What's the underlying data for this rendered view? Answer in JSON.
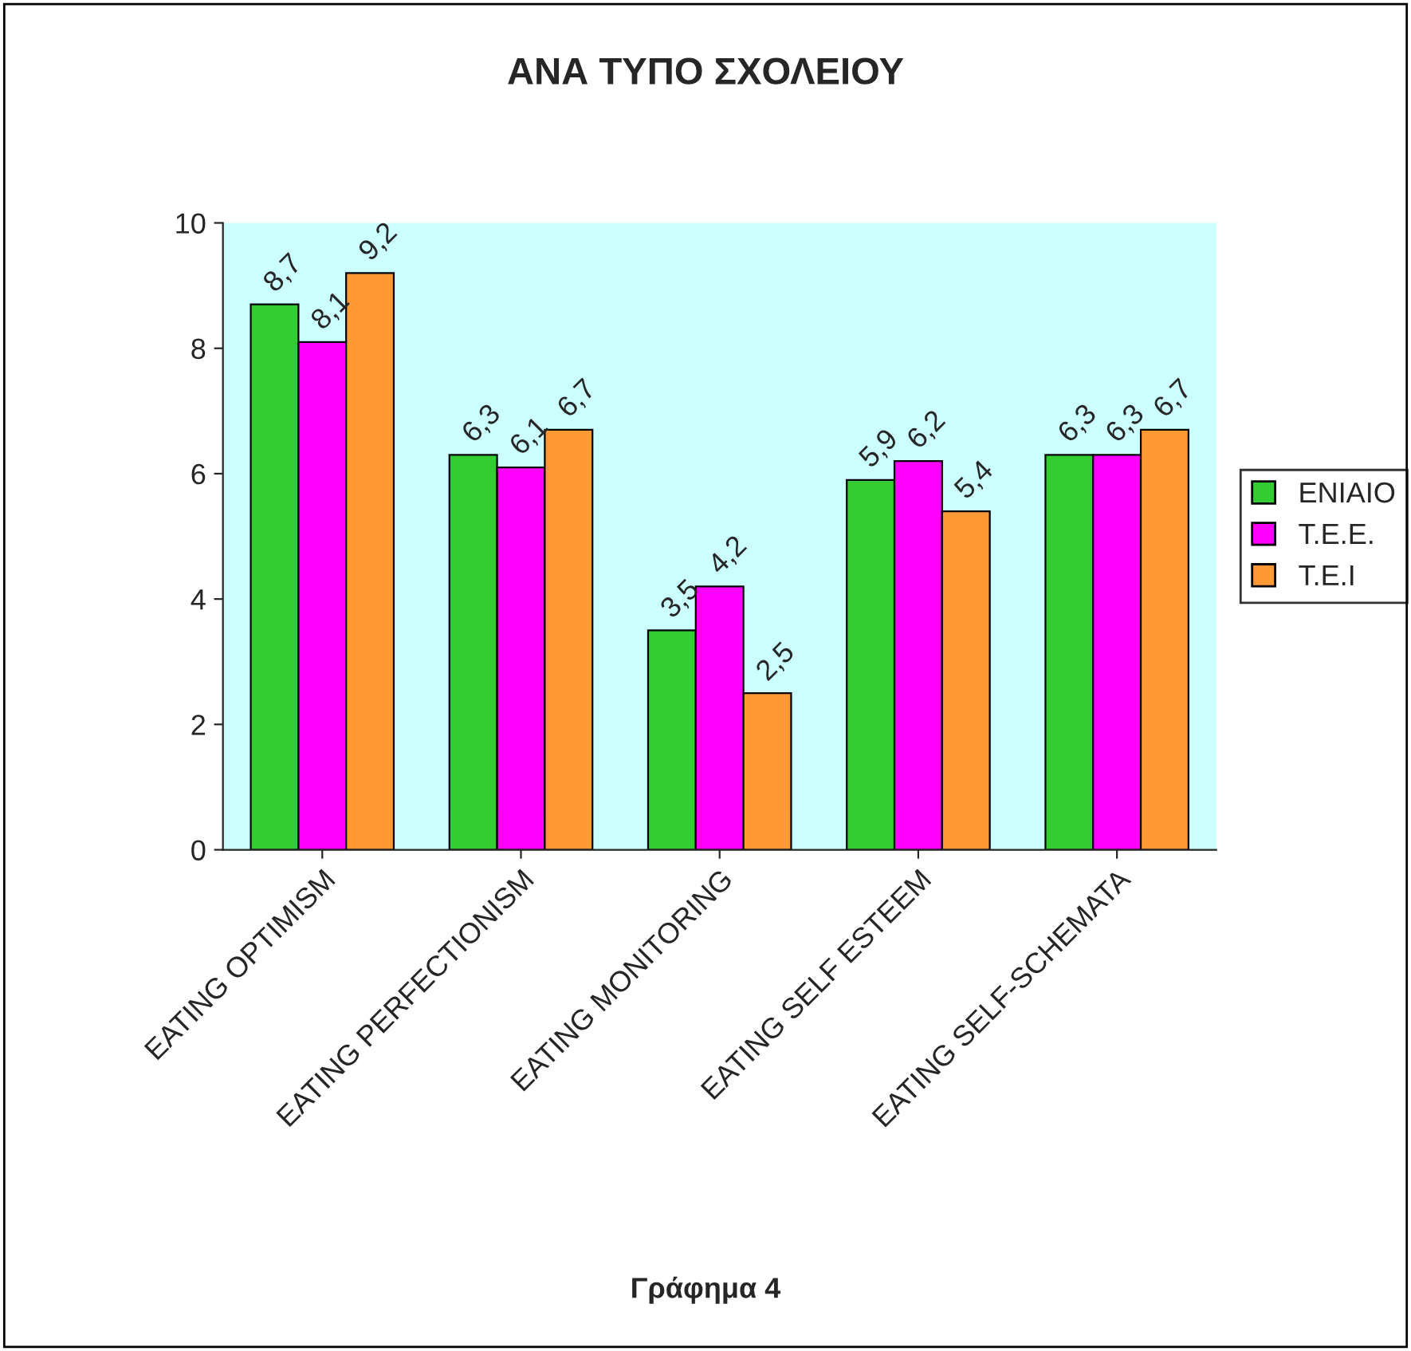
{
  "chart_data": {
    "type": "bar",
    "title": "ΑΝΑ ΤΥΠΟ ΣΧΟΛΕΙΟΥ",
    "categories": [
      "EATING OPTIMISM",
      "EATING PERFECTIONISM",
      "EATING MONITORING",
      "EATING SELF ESTEEM",
      "EATING SELF-SCHEMATA"
    ],
    "series": [
      {
        "name": "ΕΝΙΑΙΟ",
        "color": "#33cc33",
        "values": [
          8.7,
          6.3,
          3.5,
          5.9,
          6.3
        ],
        "value_labels": [
          "8,7",
          "6,3",
          "3,5",
          "5,9",
          "6,3"
        ]
      },
      {
        "name": "Τ.Ε.Ε.",
        "color": "#ff00ff",
        "values": [
          8.1,
          6.1,
          4.2,
          6.2,
          6.3
        ],
        "value_labels": [
          "8,1",
          "6,1",
          "4,2",
          "6,2",
          "6,3"
        ]
      },
      {
        "name": "Τ.Ε.Ι",
        "color": "#ff9933",
        "values": [
          9.2,
          6.7,
          2.5,
          5.4,
          6.7
        ],
        "value_labels": [
          "9,2",
          "6,7",
          "2,5",
          "5,4",
          "6,7"
        ]
      }
    ],
    "ylim": [
      0,
      10
    ],
    "yticks": [
      0,
      2,
      4,
      6,
      8,
      10
    ],
    "grid": false,
    "legend": "right",
    "annotations": [
      "Γράφημα 4"
    ]
  }
}
